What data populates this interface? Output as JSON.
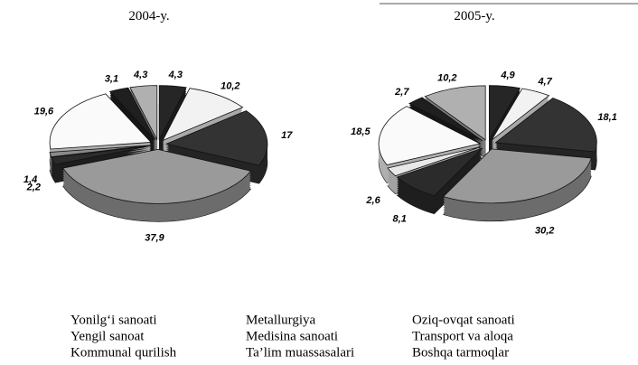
{
  "chart_data": [
    {
      "type": "pie",
      "title": "2004-y.",
      "values": [
        4.3,
        10.2,
        17,
        37.9,
        2.2,
        1.4,
        19.6,
        3.1,
        4.3
      ],
      "value_labels": [
        "4,3",
        "10,2",
        "17",
        "37,9",
        "2,2",
        "1,4",
        "19,6",
        "3,1",
        "4,3"
      ],
      "colors": [
        "#262626",
        "#f2f2f2",
        "#333333",
        "#9a9a9a",
        "#2b2b2b",
        "#8a8a8a",
        "#fafafa",
        "#1f1f1f",
        "#b0b0b0"
      ]
    },
    {
      "type": "pie",
      "title": "2005-y.",
      "values": [
        4.9,
        4.7,
        18.1,
        30.2,
        8.1,
        2.6,
        18.5,
        2.7,
        10.2
      ],
      "value_labels": [
        "4,9",
        "4,7",
        "18,1",
        "30,2",
        "8,1",
        "2,6",
        "18,5",
        "2,7",
        "10,2"
      ],
      "colors": [
        "#262626",
        "#f2f2f2",
        "#333333",
        "#9a9a9a",
        "#2b2b2b",
        "#e8e8e8",
        "#fafafa",
        "#1f1f1f",
        "#b0b0b0"
      ]
    }
  ],
  "legend": [
    "Yonilg‘i sanoati",
    "Yengil sanoat",
    "Kommunal qurilish",
    "Metallurgiya",
    "Medisina sanoati",
    "Ta’lim muassasalari",
    "Oziq-ovqat sanoati",
    "Transport va aloqa",
    "Boshqa tarmoqlar"
  ]
}
